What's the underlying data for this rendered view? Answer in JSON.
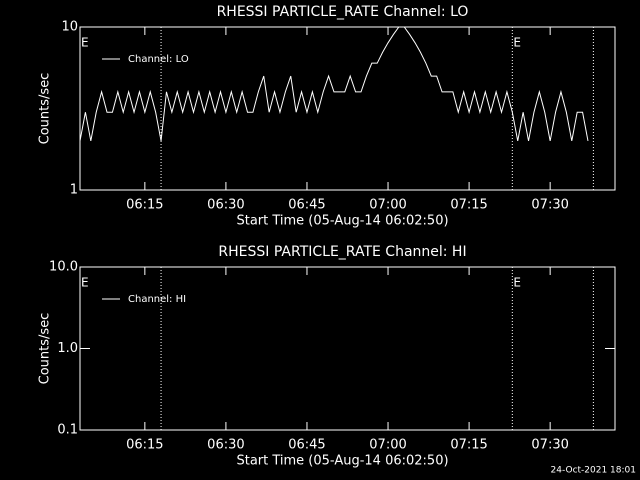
{
  "chart_data": [
    {
      "type": "line",
      "title": "RHESSI PARTICLE_RATE Channel: LO",
      "xlabel": "Start Time (05-Aug-14 06:02:50)",
      "ylabel": "Counts/sec",
      "log_y": true,
      "color": "#ffffff",
      "legend": "upper left",
      "xlim": [
        "06:03",
        "07:42"
      ],
      "xticks": [
        "06:15",
        "06:30",
        "06:45",
        "07:00",
        "07:15",
        "07:30"
      ],
      "ylim": [
        1,
        10
      ],
      "yticks": [
        1,
        10
      ],
      "x": [
        "06:03",
        "06:04",
        "06:05",
        "06:06",
        "06:07",
        "06:08",
        "06:09",
        "06:10",
        "06:11",
        "06:12",
        "06:13",
        "06:14",
        "06:15",
        "06:16",
        "06:17",
        "06:18",
        "06:19",
        "06:20",
        "06:21",
        "06:22",
        "06:23",
        "06:24",
        "06:25",
        "06:26",
        "06:27",
        "06:28",
        "06:29",
        "06:30",
        "06:31",
        "06:32",
        "06:33",
        "06:34",
        "06:35",
        "06:36",
        "06:37",
        "06:38",
        "06:39",
        "06:40",
        "06:41",
        "06:42",
        "06:43",
        "06:44",
        "06:45",
        "06:46",
        "06:47",
        "06:48",
        "06:49",
        "06:50",
        "06:51",
        "06:52",
        "06:53",
        "06:54",
        "06:55",
        "06:56",
        "06:57",
        "06:58",
        "06:59",
        "07:00",
        "07:01",
        "07:02",
        "07:03",
        "07:04",
        "07:05",
        "07:06",
        "07:07",
        "07:08",
        "07:09",
        "07:10",
        "07:11",
        "07:12",
        "07:13",
        "07:14",
        "07:15",
        "07:16",
        "07:17",
        "07:18",
        "07:19",
        "07:20",
        "07:21",
        "07:22",
        "07:23",
        "07:24",
        "07:25",
        "07:26",
        "07:27",
        "07:28",
        "07:29",
        "07:30",
        "07:31",
        "07:32",
        "07:33",
        "07:34",
        "07:35",
        "07:36",
        "07:37"
      ],
      "series": [
        {
          "name": "Channel: LO",
          "values": [
            2,
            3,
            2,
            3,
            4,
            3,
            3,
            4,
            3,
            4,
            3,
            4,
            3,
            4,
            3,
            2,
            4,
            3,
            4,
            3,
            4,
            3,
            4,
            3,
            4,
            3,
            4,
            3,
            4,
            3,
            4,
            3,
            3,
            4,
            5,
            3,
            4,
            3,
            4,
            5,
            3,
            4,
            3,
            4,
            3,
            4,
            5,
            4,
            4,
            4,
            5,
            4,
            4,
            5,
            6,
            6,
            7,
            8,
            9,
            10,
            10,
            9,
            8,
            7,
            6,
            5,
            5,
            4,
            4,
            4,
            3,
            4,
            3,
            4,
            3,
            4,
            3,
            4,
            3,
            4,
            3,
            2,
            3,
            2,
            3,
            4,
            3,
            2,
            3,
            4,
            3,
            2,
            3,
            3,
            2
          ]
        }
      ],
      "vlines": [
        "06:18",
        "07:23",
        "07:38"
      ],
      "annotations": [
        "E",
        "E"
      ]
    },
    {
      "type": "line",
      "title": "RHESSI PARTICLE_RATE Channel: HI",
      "xlabel": "Start Time (05-Aug-14 06:02:50)",
      "ylabel": "Counts/sec",
      "log_y": true,
      "color": "#ffffff",
      "legend": "upper left",
      "xlim": [
        "06:03",
        "07:42"
      ],
      "xticks": [
        "06:15",
        "06:30",
        "06:45",
        "07:00",
        "07:15",
        "07:30"
      ],
      "ylim": [
        0.1,
        10
      ],
      "yticks": [
        {
          "value": 0.1,
          "label": "0.1"
        },
        {
          "value": 1,
          "label": "1.0"
        },
        {
          "value": 10,
          "label": "10.0"
        }
      ],
      "x": [],
      "series": [
        {
          "name": "Channel: HI",
          "values": []
        }
      ],
      "vlines": [
        "06:18",
        "07:23",
        "07:38"
      ],
      "annotations": [
        "E",
        "E"
      ]
    }
  ],
  "footer": "24-Oct-2021 18:01"
}
